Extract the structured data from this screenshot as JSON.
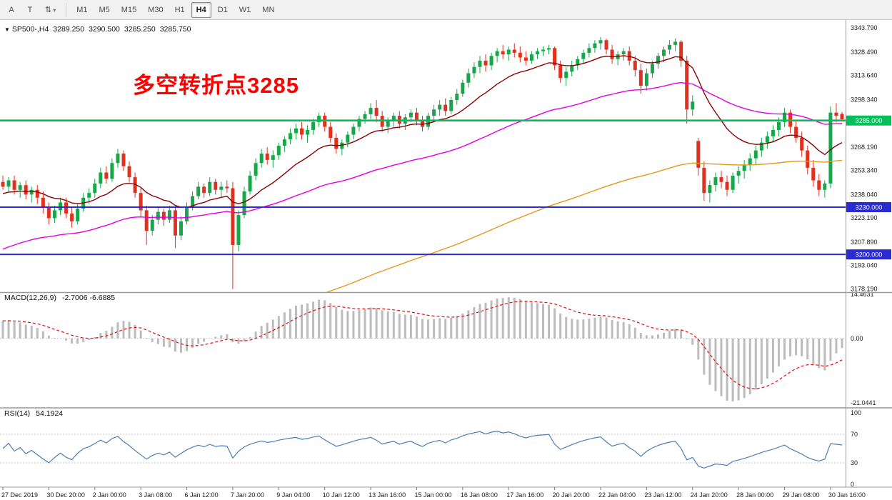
{
  "toolbar": {
    "tool_a": "A",
    "tool_t": "T",
    "dropdown_icon": "⇅",
    "caret": "▾",
    "active_timeframe": "H4",
    "timeframes": [
      {
        "label": "M1"
      },
      {
        "label": "M5"
      },
      {
        "label": "M15"
      },
      {
        "label": "M30"
      },
      {
        "label": "H1"
      },
      {
        "label": "H4"
      },
      {
        "label": "D1"
      },
      {
        "label": "W1"
      },
      {
        "label": "MN"
      }
    ]
  },
  "chart_header": {
    "collapse_icon": "▼",
    "symbol": "SP500-,H4",
    "open": "3289.250",
    "high": "3290.500",
    "low": "3285.250",
    "close": "3285.750"
  },
  "annotation": {
    "text": "多空转折点3285",
    "color": "#ff0000"
  },
  "chart_data": {
    "type": "candlestick",
    "symbol": "SP500-",
    "timeframe": "H4",
    "price_range": {
      "top": 3347.0,
      "bottom": 3176.5
    },
    "price_axis_labels": [
      "3343.790",
      "3328.490",
      "3313.640",
      "3298.340",
      "3268.190",
      "3253.340",
      "3238.040",
      "3223.190",
      "3207.890",
      "3193.040",
      "3178.190"
    ],
    "time_axis_labels": [
      "27 Dec 2019",
      "30 Dec 20:00",
      "2 Jan 00:00",
      "3 Jan 08:00",
      "6 Jan 12:00",
      "7 Jan 20:00",
      "9 Jan 04:00",
      "10 Jan 12:00",
      "13 Jan 16:00",
      "15 Jan 00:00",
      "16 Jan 08:00",
      "17 Jan 16:00",
      "20 Jan 20:00",
      "22 Jan 04:00",
      "23 Jan 12:00",
      "24 Jan 20:00",
      "28 Jan 00:00",
      "29 Jan 08:00",
      "30 Jan 16:00"
    ],
    "bars_per_label": 8,
    "horizontal_lines": [
      {
        "price": 3285.0,
        "label": "3285.000",
        "color": "#00c05a",
        "width": 2.6
      },
      {
        "price": 3230.0,
        "label": "3230.000",
        "color": "#2b2bd4",
        "width": 2
      },
      {
        "price": 3200.0,
        "label": "3200.000",
        "color": "#2b2bd4",
        "width": 2
      }
    ],
    "moving_averages": [
      {
        "name": "ma-fast-darkred",
        "period": 16,
        "seed": 3238,
        "color": "#8b0000"
      },
      {
        "name": "ma-mid-magenta",
        "period": 60,
        "seed": 3202,
        "color": "#e400e4"
      },
      {
        "name": "ma-slow-orange",
        "period": 140,
        "seed": 3085,
        "color": "#e2991f"
      }
    ],
    "colors": {
      "up": "#17a74a",
      "down": "#e0301e",
      "macd_hist": "#bcbcbc",
      "macd_signal": "#dd1111",
      "rsi": "#4a7fb5",
      "axis_text": "#1a1a1a"
    },
    "indicators": [
      {
        "name": "MACD",
        "label": "MACD(12,26,9)",
        "values": "-2.7006 -6.6885",
        "axis_labels": [
          "14.4631",
          "0.00",
          "-21.0441"
        ],
        "params": {
          "fast": 12,
          "slow": 26,
          "signal": 9
        }
      },
      {
        "name": "RSI",
        "label": "RSI(14)",
        "values": "54.1924",
        "axis_labels": [
          "100",
          "70",
          "30",
          "0"
        ],
        "levels": [
          70,
          30
        ],
        "params": {
          "period": 14
        }
      }
    ],
    "bars": [
      [
        3246,
        3250,
        3241,
        3243
      ],
      [
        3243,
        3249,
        3240,
        3247
      ],
      [
        3247,
        3250,
        3238,
        3241
      ],
      [
        3241,
        3246,
        3236,
        3244
      ],
      [
        3244,
        3247,
        3235,
        3238
      ],
      [
        3238,
        3243,
        3233,
        3241
      ],
      [
        3241,
        3244,
        3232,
        3236
      ],
      [
        3236,
        3240,
        3226,
        3230
      ],
      [
        3230,
        3233,
        3219,
        3223
      ],
      [
        3223,
        3231,
        3220,
        3228
      ],
      [
        3228,
        3236,
        3225,
        3233
      ],
      [
        3233,
        3236,
        3223,
        3226
      ],
      [
        3226,
        3230,
        3217,
        3221
      ],
      [
        3221,
        3232,
        3219,
        3229
      ],
      [
        3229,
        3239,
        3227,
        3236
      ],
      [
        3236,
        3242,
        3232,
        3239
      ],
      [
        3239,
        3248,
        3236,
        3245
      ],
      [
        3245,
        3255,
        3242,
        3252
      ],
      [
        3252,
        3256,
        3245,
        3248
      ],
      [
        3248,
        3261,
        3246,
        3258
      ],
      [
        3258,
        3267,
        3255,
        3264
      ],
      [
        3264,
        3266,
        3253,
        3256
      ],
      [
        3256,
        3259,
        3246,
        3249
      ],
      [
        3249,
        3252,
        3236,
        3239
      ],
      [
        3239,
        3242,
        3224,
        3228
      ],
      [
        3228,
        3231,
        3206,
        3215
      ],
      [
        3215,
        3225,
        3212,
        3222
      ],
      [
        3222,
        3230,
        3219,
        3227
      ],
      [
        3227,
        3229,
        3218,
        3222
      ],
      [
        3222,
        3231,
        3220,
        3228
      ],
      [
        3228,
        3230,
        3204,
        3212
      ],
      [
        3212,
        3224,
        3209,
        3221
      ],
      [
        3221,
        3233,
        3219,
        3230
      ],
      [
        3230,
        3240,
        3228,
        3237
      ],
      [
        3237,
        3246,
        3235,
        3243
      ],
      [
        3243,
        3245,
        3236,
        3239
      ],
      [
        3239,
        3249,
        3237,
        3246
      ],
      [
        3246,
        3248,
        3238,
        3241
      ],
      [
        3241,
        3246,
        3236,
        3243
      ],
      [
        3243,
        3247,
        3239,
        3242
      ],
      [
        3242,
        3246,
        3178,
        3206
      ],
      [
        3206,
        3228,
        3202,
        3225
      ],
      [
        3225,
        3243,
        3223,
        3240
      ],
      [
        3240,
        3253,
        3238,
        3250
      ],
      [
        3250,
        3261,
        3247,
        3258
      ],
      [
        3258,
        3267,
        3255,
        3264
      ],
      [
        3264,
        3268,
        3257,
        3260
      ],
      [
        3260,
        3266,
        3255,
        3263
      ],
      [
        3263,
        3271,
        3260,
        3269
      ],
      [
        3269,
        3275,
        3265,
        3273
      ],
      [
        3273,
        3280,
        3270,
        3277
      ],
      [
        3277,
        3283,
        3273,
        3280
      ],
      [
        3280,
        3284,
        3273,
        3276
      ],
      [
        3276,
        3282,
        3271,
        3279
      ],
      [
        3279,
        3286,
        3276,
        3284
      ],
      [
        3284,
        3290,
        3281,
        3288
      ],
      [
        3288,
        3290,
        3278,
        3281
      ],
      [
        3281,
        3284,
        3271,
        3274
      ],
      [
        3274,
        3277,
        3264,
        3267
      ],
      [
        3267,
        3273,
        3263,
        3271
      ],
      [
        3271,
        3278,
        3268,
        3276
      ],
      [
        3276,
        3283,
        3273,
        3281
      ],
      [
        3281,
        3288,
        3278,
        3286
      ],
      [
        3286,
        3291,
        3283,
        3289
      ],
      [
        3289,
        3296,
        3286,
        3293
      ],
      [
        3293,
        3298,
        3284,
        3288
      ],
      [
        3288,
        3291,
        3278,
        3281
      ],
      [
        3281,
        3287,
        3277,
        3285
      ],
      [
        3285,
        3290,
        3281,
        3288
      ],
      [
        3288,
        3291,
        3280,
        3283
      ],
      [
        3283,
        3289,
        3279,
        3287
      ],
      [
        3287,
        3292,
        3284,
        3290
      ],
      [
        3290,
        3293,
        3282,
        3285
      ],
      [
        3285,
        3288,
        3278,
        3281
      ],
      [
        3281,
        3290,
        3279,
        3288
      ],
      [
        3288,
        3295,
        3285,
        3292
      ],
      [
        3292,
        3298,
        3288,
        3295
      ],
      [
        3295,
        3299,
        3288,
        3291
      ],
      [
        3291,
        3300,
        3289,
        3298
      ],
      [
        3298,
        3305,
        3295,
        3302
      ],
      [
        3302,
        3311,
        3300,
        3309
      ],
      [
        3309,
        3318,
        3306,
        3315
      ],
      [
        3315,
        3322,
        3312,
        3319
      ],
      [
        3319,
        3326,
        3315,
        3323
      ],
      [
        3323,
        3327,
        3316,
        3320
      ],
      [
        3320,
        3328,
        3317,
        3326
      ],
      [
        3326,
        3331,
        3322,
        3329
      ],
      [
        3329,
        3333,
        3324,
        3327
      ],
      [
        3327,
        3332,
        3323,
        3330
      ],
      [
        3330,
        3334,
        3325,
        3328
      ],
      [
        3328,
        3332,
        3322,
        3325
      ],
      [
        3325,
        3329,
        3320,
        3323
      ],
      [
        3323,
        3329,
        3321,
        3327
      ],
      [
        3327,
        3331,
        3324,
        3329
      ],
      [
        3329,
        3332,
        3326,
        3330
      ],
      [
        3330,
        3333,
        3327,
        3331
      ],
      [
        3331,
        3332,
        3317,
        3320
      ],
      [
        3320,
        3323,
        3309,
        3312
      ],
      [
        3312,
        3319,
        3307,
        3316
      ],
      [
        3316,
        3323,
        3313,
        3320
      ],
      [
        3320,
        3326,
        3317,
        3324
      ],
      [
        3324,
        3330,
        3321,
        3328
      ],
      [
        3328,
        3334,
        3325,
        3331
      ],
      [
        3331,
        3336,
        3328,
        3334
      ],
      [
        3334,
        3338,
        3330,
        3336
      ],
      [
        3336,
        3337,
        3327,
        3330
      ],
      [
        3330,
        3333,
        3321,
        3324
      ],
      [
        3324,
        3329,
        3320,
        3327
      ],
      [
        3327,
        3331,
        3323,
        3329
      ],
      [
        3329,
        3332,
        3320,
        3323
      ],
      [
        3323,
        3326,
        3313,
        3317
      ],
      [
        3317,
        3321,
        3302,
        3307
      ],
      [
        3307,
        3318,
        3304,
        3315
      ],
      [
        3315,
        3323,
        3312,
        3321
      ],
      [
        3321,
        3328,
        3318,
        3326
      ],
      [
        3326,
        3332,
        3322,
        3330
      ],
      [
        3330,
        3336,
        3327,
        3333
      ],
      [
        3333,
        3337,
        3329,
        3335
      ],
      [
        3335,
        3336,
        3319,
        3323
      ],
      [
        3323,
        3326,
        3283,
        3292
      ],
      [
        3292,
        3301,
        3288,
        3297
      ],
      [
        3272,
        3274,
        3250,
        3255
      ],
      [
        3255,
        3259,
        3234,
        3239
      ],
      [
        3239,
        3247,
        3233,
        3244
      ],
      [
        3244,
        3252,
        3240,
        3249
      ],
      [
        3249,
        3253,
        3242,
        3246
      ],
      [
        3246,
        3250,
        3237,
        3241
      ],
      [
        3241,
        3252,
        3239,
        3250
      ],
      [
        3250,
        3256,
        3245,
        3253
      ],
      [
        3253,
        3260,
        3248,
        3257
      ],
      [
        3257,
        3264,
        3253,
        3261
      ],
      [
        3261,
        3269,
        3257,
        3266
      ],
      [
        3266,
        3274,
        3262,
        3271
      ],
      [
        3271,
        3278,
        3267,
        3275
      ],
      [
        3275,
        3282,
        3271,
        3279
      ],
      [
        3279,
        3287,
        3275,
        3284
      ],
      [
        3284,
        3293,
        3281,
        3290
      ],
      [
        3290,
        3292,
        3277,
        3281
      ],
      [
        3281,
        3285,
        3271,
        3274
      ],
      [
        3274,
        3278,
        3262,
        3266
      ],
      [
        3266,
        3269,
        3251,
        3255
      ],
      [
        3255,
        3260,
        3243,
        3247
      ],
      [
        3247,
        3251,
        3237,
        3241
      ],
      [
        3241,
        3247,
        3236,
        3245
      ],
      [
        3245,
        3294,
        3242,
        3290
      ],
      [
        3290,
        3296,
        3284,
        3288
      ],
      [
        3289.2,
        3290.5,
        3285.2,
        3285.8
      ]
    ]
  }
}
